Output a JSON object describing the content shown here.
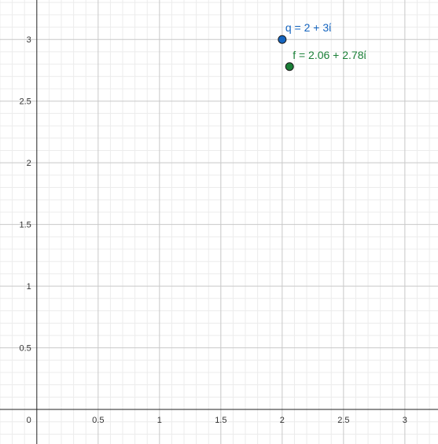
{
  "chart_data": {
    "type": "scatter",
    "xlim": [
      -0.3,
      3.27
    ],
    "ylim": [
      -0.28,
      3.32
    ],
    "grid": true,
    "minor_grid": true,
    "origin_label": "0",
    "x_ticks": [
      {
        "value": 0.5,
        "label": "0.5"
      },
      {
        "value": 1,
        "label": "1"
      },
      {
        "value": 1.5,
        "label": "1.5"
      },
      {
        "value": 2,
        "label": "2"
      },
      {
        "value": 2.5,
        "label": "2.5"
      },
      {
        "value": 3,
        "label": "3"
      }
    ],
    "y_ticks": [
      {
        "value": 0.5,
        "label": "0.5"
      },
      {
        "value": 1,
        "label": "1"
      },
      {
        "value": 1.5,
        "label": "1.5"
      },
      {
        "value": 2,
        "label": "2"
      },
      {
        "value": 2.5,
        "label": "2.5"
      },
      {
        "value": 3,
        "label": "3"
      }
    ],
    "points": [
      {
        "name": "q",
        "label": "q = 2 + 3ί",
        "x": 2,
        "y": 3,
        "color": "#1565c0"
      },
      {
        "name": "f",
        "label": "f = 2.06 + 2.78ί",
        "x": 2.06,
        "y": 2.78,
        "color": "#1a7f37"
      }
    ]
  }
}
